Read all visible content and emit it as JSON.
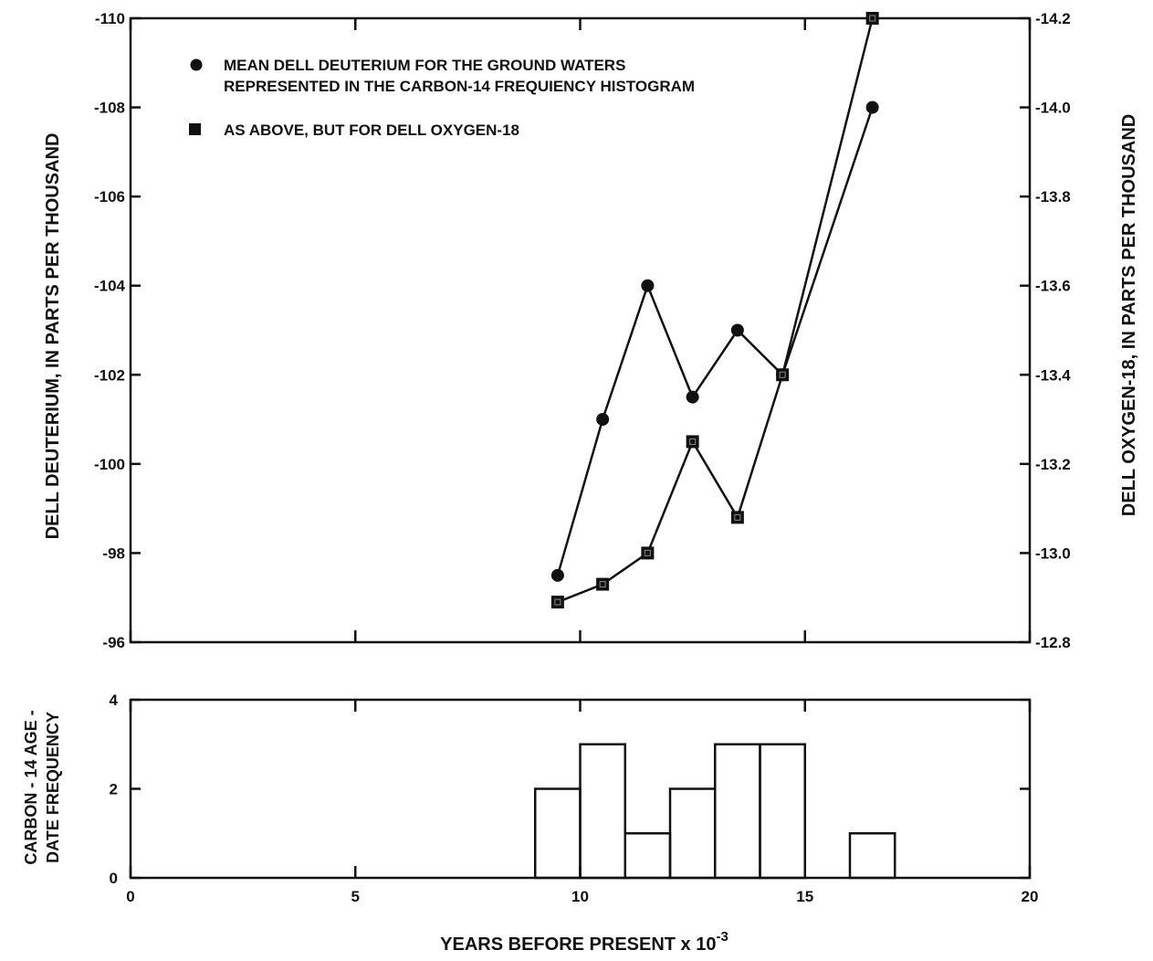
{
  "colors": {
    "ink": "#111111",
    "background": "#ffffff"
  },
  "x_axis": {
    "label_main": "YEARS BEFORE PRESENT x 10",
    "label_exponent": "-3",
    "ticks": [
      0,
      5,
      10,
      15,
      20
    ],
    "tick_labels": [
      "0",
      "5",
      "10",
      "15",
      "20"
    ]
  },
  "legend": {
    "deuterium_line1": "MEAN DELL DEUTERIUM FOR THE GROUND WATERS",
    "deuterium_line2": "REPRESENTED IN THE CARBON-14 FREQUIENCY HISTOGRAM",
    "oxygen": "AS ABOVE, BUT FOR DELL OXYGEN-18"
  },
  "chart_data": [
    {
      "type": "line",
      "ylabel_left": "DELL DEUTERIUM,  IN PARTS PER THOUSAND",
      "ylabel_right": "DELL OXYGEN-18, IN PARTS PER THOUSAND",
      "xlim": [
        0,
        20
      ],
      "ylim_left": [
        -96,
        -110
      ],
      "ylim_right": [
        -12.8,
        -14.2
      ],
      "left_ticks": [
        -96,
        -98,
        -100,
        -102,
        -104,
        -106,
        -108,
        -110
      ],
      "left_tick_labels": [
        "-96",
        "-98",
        "-100",
        "-102",
        "-104",
        "-106",
        "-108",
        "-110"
      ],
      "right_ticks": [
        -12.8,
        -13.0,
        -13.2,
        -13.4,
        -13.6,
        -13.8,
        -14.0,
        -14.2
      ],
      "right_tick_labels": [
        "-12.8",
        "-13.0",
        "-13.2",
        "-13.4",
        "-13.6",
        "-13.8",
        "-14.0",
        "-14.2"
      ],
      "series": [
        {
          "marker": "circle",
          "axis": "left",
          "x": [
            9.5,
            10.5,
            11.5,
            12.5,
            13.5,
            14.5,
            16.5
          ],
          "y": [
            -97.5,
            -101,
            -104,
            -101.5,
            -103,
            -102,
            -108
          ]
        },
        {
          "marker": "square",
          "axis": "right",
          "x": [
            9.5,
            10.5,
            11.5,
            12.5,
            13.5,
            14.5,
            16.5
          ],
          "y": [
            -12.89,
            -12.93,
            -13.0,
            -13.25,
            -13.08,
            -13.4,
            -14.2
          ]
        }
      ]
    },
    {
      "type": "bar",
      "ylabel_line1": "CARBON - 14 AGE -",
      "ylabel_line2": "DATE FREQUENCY",
      "xlim": [
        0,
        20
      ],
      "ylim": [
        0,
        4
      ],
      "y_ticks": [
        0,
        2,
        4
      ],
      "y_tick_labels": [
        "0",
        "2",
        "4"
      ],
      "bins": [
        {
          "x0": 9,
          "x1": 10,
          "value": 2
        },
        {
          "x0": 10,
          "x1": 11,
          "value": 3
        },
        {
          "x0": 11,
          "x1": 12,
          "value": 1
        },
        {
          "x0": 12,
          "x1": 13,
          "value": 2
        },
        {
          "x0": 13,
          "x1": 14,
          "value": 3
        },
        {
          "x0": 14,
          "x1": 15,
          "value": 3
        },
        {
          "x0": 16,
          "x1": 17,
          "value": 1
        }
      ]
    }
  ]
}
